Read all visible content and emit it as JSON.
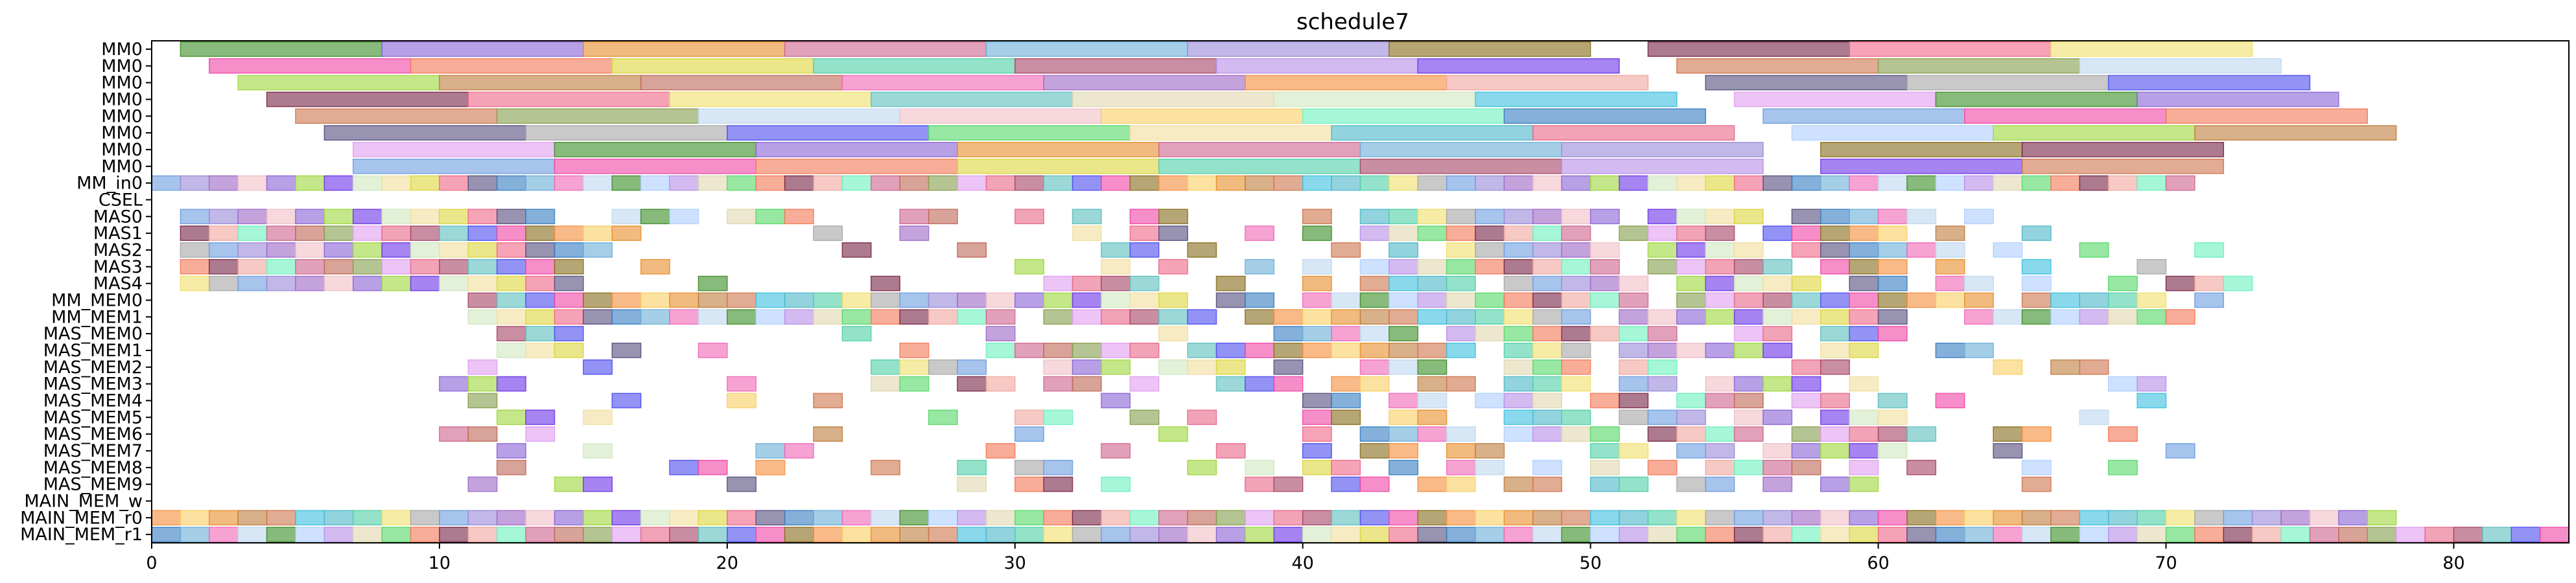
{
  "chart_data": {
    "type": "gantt",
    "title": "schedule7",
    "xlim": [
      0,
      84
    ],
    "x_ticks": [
      0,
      10,
      20,
      30,
      40,
      50,
      60,
      70,
      80
    ],
    "grid": false,
    "rows": [
      "MM0",
      "MM0",
      "MM0",
      "MM0",
      "MM0",
      "MM0",
      "MM0",
      "MM0",
      "MM_in0",
      "CSEL",
      "MAS0",
      "MAS1",
      "MAS2",
      "MAS3",
      "MAS4",
      "MM_MEM0",
      "MM_MEM1",
      "MAS_MEM0",
      "MAS_MEM1",
      "MAS_MEM2",
      "MAS_MEM3",
      "MAS_MEM4",
      "MAS_MEM5",
      "MAS_MEM6",
      "MAS_MEM7",
      "MAS_MEM8",
      "MAS_MEM9",
      "MAIN_MEM_w",
      "MAIN_MEM_r0",
      "MAIN_MEM_r1"
    ],
    "palette": [
      "#59d96b",
      "#3f8f2a",
      "#3a80c2",
      "#f2dfa0",
      "#8c66d6",
      "#6f9fe0",
      "#4fb8c9",
      "#e89030",
      "#f04aa8",
      "#e86a8a",
      "#d06890",
      "#f47a5a",
      "#b0d0ff",
      "#6eb0d8",
      "#ddd640",
      "#a0d840",
      "#9b8cd8",
      "#52d0a8",
      "#c08040",
      "#8a7020",
      "#a84868",
      "#c06a5a",
      "#7a2a4a",
      "#b890e8",
      "#f06ab8",
      "#f06a8a",
      "#7038e8",
      "#a06ac8",
      "#f0e070",
      "#d07850",
      "#f59040",
      "#60c0c0",
      "#88a050",
      "#f0a8a0",
      "#e0d8b0",
      "#c0d8f0",
      "#585080",
      "#d0e8c0",
      "#f0c0c8",
      "#a8a8a8",
      "#40c0e0",
      "#f8d068",
      "#5050f0",
      "#e0a0f0",
      "#70f0c0"
    ],
    "long_rows": [
      {
        "row": 0,
        "tasks": [
          [
            1,
            8
          ],
          [
            8,
            15
          ],
          [
            15,
            22
          ],
          [
            22,
            29
          ],
          [
            29,
            36
          ],
          [
            36,
            43
          ],
          [
            43,
            50
          ],
          [
            52,
            59
          ],
          [
            59,
            66
          ],
          [
            66,
            73
          ]
        ]
      },
      {
        "row": 1,
        "tasks": [
          [
            2,
            9
          ],
          [
            9,
            16
          ],
          [
            16,
            23
          ],
          [
            23,
            30
          ],
          [
            30,
            37
          ],
          [
            37,
            44
          ],
          [
            44,
            51
          ],
          [
            53,
            60
          ],
          [
            60,
            67
          ],
          [
            67,
            74
          ]
        ]
      },
      {
        "row": 2,
        "tasks": [
          [
            3,
            10
          ],
          [
            10,
            17
          ],
          [
            17,
            24
          ],
          [
            24,
            31
          ],
          [
            31,
            38
          ],
          [
            38,
            45
          ],
          [
            45,
            52
          ],
          [
            54,
            61
          ],
          [
            61,
            68
          ],
          [
            68,
            75
          ]
        ]
      },
      {
        "row": 3,
        "tasks": [
          [
            4,
            11
          ],
          [
            11,
            18
          ],
          [
            18,
            25
          ],
          [
            25,
            32
          ],
          [
            32,
            39
          ],
          [
            39,
            46
          ],
          [
            46,
            53
          ],
          [
            55,
            62
          ],
          [
            62,
            69
          ],
          [
            69,
            76
          ]
        ]
      },
      {
        "row": 4,
        "tasks": [
          [
            5,
            12
          ],
          [
            12,
            19
          ],
          [
            19,
            26
          ],
          [
            26,
            33
          ],
          [
            33,
            40
          ],
          [
            40,
            47
          ],
          [
            47,
            54
          ],
          [
            56,
            63
          ],
          [
            63,
            70
          ],
          [
            70,
            77
          ]
        ]
      },
      {
        "row": 5,
        "tasks": [
          [
            6,
            13
          ],
          [
            13,
            20
          ],
          [
            20,
            27
          ],
          [
            27,
            34
          ],
          [
            34,
            41
          ],
          [
            41,
            48
          ],
          [
            48,
            55
          ],
          [
            57,
            64
          ],
          [
            64,
            71
          ],
          [
            71,
            78
          ]
        ]
      },
      {
        "row": 6,
        "tasks": [
          [
            7,
            14
          ],
          [
            14,
            21
          ],
          [
            21,
            28
          ],
          [
            28,
            35
          ],
          [
            35,
            42
          ],
          [
            42,
            49
          ],
          [
            49,
            56
          ],
          [
            58,
            65
          ],
          [
            65,
            72
          ]
        ]
      },
      {
        "row": 7,
        "tasks": [
          [
            7,
            14
          ],
          [
            14,
            21
          ],
          [
            21,
            28
          ],
          [
            28,
            35
          ],
          [
            35,
            42
          ],
          [
            42,
            49
          ],
          [
            49,
            56
          ],
          [
            58,
            65
          ],
          [
            65,
            72
          ]
        ]
      }
    ],
    "unit_rows": [
      {
        "row": 8,
        "spans": [
          [
            0,
            71
          ]
        ]
      },
      {
        "row": 9,
        "spans": []
      },
      {
        "row": 10,
        "spans": [
          [
            1,
            14
          ],
          [
            16,
            19
          ],
          [
            20,
            23
          ],
          [
            26,
            28
          ],
          [
            30,
            31
          ],
          [
            32,
            33
          ],
          [
            34,
            36
          ],
          [
            40,
            41
          ],
          [
            42,
            51
          ],
          [
            52,
            56
          ],
          [
            57,
            62
          ],
          [
            63,
            64
          ]
        ]
      },
      {
        "row": 11,
        "spans": [
          [
            1,
            17
          ],
          [
            23,
            24
          ],
          [
            26,
            27
          ],
          [
            32,
            33
          ],
          [
            34,
            36
          ],
          [
            38,
            39
          ],
          [
            40,
            41
          ],
          [
            42,
            50
          ],
          [
            51,
            55
          ],
          [
            56,
            61
          ],
          [
            62,
            63
          ],
          [
            65,
            66
          ]
        ]
      },
      {
        "row": 12,
        "spans": [
          [
            1,
            16
          ],
          [
            24,
            25
          ],
          [
            28,
            29
          ],
          [
            33,
            35
          ],
          [
            36,
            37
          ],
          [
            41,
            42
          ],
          [
            43,
            44
          ],
          [
            45,
            51
          ],
          [
            52,
            56
          ],
          [
            57,
            63
          ],
          [
            64,
            65
          ],
          [
            67,
            68
          ],
          [
            71,
            72
          ]
        ]
      },
      {
        "row": 13,
        "spans": [
          [
            1,
            15
          ],
          [
            17,
            18
          ],
          [
            30,
            31
          ],
          [
            33,
            34
          ],
          [
            35,
            36
          ],
          [
            38,
            39
          ],
          [
            40,
            41
          ],
          [
            42,
            51
          ],
          [
            52,
            57
          ],
          [
            58,
            61
          ],
          [
            62,
            63
          ],
          [
            65,
            66
          ],
          [
            69,
            70
          ]
        ]
      },
      {
        "row": 14,
        "spans": [
          [
            1,
            15
          ],
          [
            19,
            20
          ],
          [
            25,
            26
          ],
          [
            31,
            35
          ],
          [
            37,
            38
          ],
          [
            40,
            41
          ],
          [
            42,
            46
          ],
          [
            47,
            52
          ],
          [
            53,
            58
          ],
          [
            59,
            61
          ],
          [
            62,
            64
          ],
          [
            65,
            66
          ],
          [
            68,
            69
          ],
          [
            70,
            72
          ],
          [
            72,
            73
          ]
        ]
      },
      {
        "row": 15,
        "spans": [
          [
            11,
            36
          ],
          [
            37,
            39
          ],
          [
            40,
            52
          ],
          [
            53,
            64
          ],
          [
            65,
            70
          ],
          [
            71,
            72
          ]
        ]
      },
      {
        "row": 16,
        "spans": [
          [
            11,
            30
          ],
          [
            31,
            37
          ],
          [
            38,
            50
          ],
          [
            51,
            61
          ],
          [
            63,
            71
          ]
        ]
      },
      {
        "row": 17,
        "spans": [
          [
            12,
            15
          ],
          [
            24,
            25
          ],
          [
            29,
            30
          ],
          [
            35,
            36
          ],
          [
            39,
            44
          ],
          [
            45,
            53
          ],
          [
            55,
            57
          ],
          [
            58,
            61
          ]
        ]
      },
      {
        "row": 18,
        "spans": [
          [
            12,
            15
          ],
          [
            16,
            17
          ],
          [
            19,
            20
          ],
          [
            26,
            27
          ],
          [
            29,
            35
          ],
          [
            36,
            46
          ],
          [
            47,
            50
          ],
          [
            51,
            57
          ],
          [
            58,
            60
          ],
          [
            62,
            64
          ]
        ]
      },
      {
        "row": 19,
        "spans": [
          [
            11,
            12
          ],
          [
            15,
            16
          ],
          [
            25,
            29
          ],
          [
            31,
            34
          ],
          [
            35,
            38
          ],
          [
            39,
            40
          ],
          [
            42,
            45
          ],
          [
            47,
            50
          ],
          [
            51,
            53
          ],
          [
            57,
            59
          ],
          [
            64,
            65
          ],
          [
            66,
            68
          ]
        ]
      },
      {
        "row": 20,
        "spans": [
          [
            10,
            13
          ],
          [
            20,
            21
          ],
          [
            25,
            27
          ],
          [
            28,
            30
          ],
          [
            31,
            33
          ],
          [
            34,
            35
          ],
          [
            37,
            40
          ],
          [
            41,
            43
          ],
          [
            44,
            46
          ],
          [
            47,
            50
          ],
          [
            51,
            53
          ],
          [
            54,
            58
          ],
          [
            59,
            60
          ],
          [
            68,
            70
          ]
        ]
      },
      {
        "row": 21,
        "spans": [
          [
            11,
            12
          ],
          [
            16,
            17
          ],
          [
            20,
            21
          ],
          [
            23,
            24
          ],
          [
            33,
            34
          ],
          [
            40,
            42
          ],
          [
            43,
            45
          ],
          [
            46,
            49
          ],
          [
            50,
            52
          ],
          [
            53,
            56
          ],
          [
            57,
            59
          ],
          [
            60,
            61
          ],
          [
            62,
            63
          ],
          [
            69,
            70
          ]
        ]
      },
      {
        "row": 22,
        "spans": [
          [
            12,
            14
          ],
          [
            15,
            16
          ],
          [
            27,
            28
          ],
          [
            30,
            32
          ],
          [
            34,
            35
          ],
          [
            36,
            37
          ],
          [
            40,
            42
          ],
          [
            43,
            45
          ],
          [
            47,
            50
          ],
          [
            51,
            54
          ],
          [
            55,
            57
          ],
          [
            58,
            61
          ],
          [
            67,
            68
          ]
        ]
      },
      {
        "row": 23,
        "spans": [
          [
            10,
            12
          ],
          [
            13,
            14
          ],
          [
            23,
            24
          ],
          [
            30,
            31
          ],
          [
            35,
            36
          ],
          [
            40,
            41
          ],
          [
            42,
            46
          ],
          [
            47,
            51
          ],
          [
            52,
            56
          ],
          [
            57,
            62
          ],
          [
            64,
            66
          ],
          [
            68,
            69
          ]
        ]
      },
      {
        "row": 24,
        "spans": [
          [
            12,
            13
          ],
          [
            15,
            16
          ],
          [
            21,
            23
          ],
          [
            29,
            30
          ],
          [
            33,
            34
          ],
          [
            37,
            38
          ],
          [
            40,
            41
          ],
          [
            42,
            44
          ],
          [
            45,
            47
          ],
          [
            50,
            52
          ],
          [
            53,
            55
          ],
          [
            56,
            61
          ],
          [
            64,
            65
          ],
          [
            70,
            71
          ]
        ]
      },
      {
        "row": 25,
        "spans": [
          [
            12,
            13
          ],
          [
            18,
            20
          ],
          [
            21,
            22
          ],
          [
            25,
            26
          ],
          [
            28,
            29
          ],
          [
            30,
            32
          ],
          [
            36,
            37
          ],
          [
            38,
            39
          ],
          [
            40,
            42
          ],
          [
            43,
            44
          ],
          [
            45,
            47
          ],
          [
            48,
            49
          ],
          [
            50,
            51
          ],
          [
            52,
            53
          ],
          [
            54,
            58
          ],
          [
            59,
            60
          ],
          [
            61,
            62
          ],
          [
            65,
            66
          ],
          [
            68,
            69
          ]
        ]
      },
      {
        "row": 26,
        "spans": [
          [
            11,
            12
          ],
          [
            14,
            16
          ],
          [
            20,
            21
          ],
          [
            28,
            29
          ],
          [
            30,
            32
          ],
          [
            33,
            34
          ],
          [
            38,
            40
          ],
          [
            41,
            43
          ],
          [
            44,
            46
          ],
          [
            47,
            49
          ],
          [
            50,
            52
          ],
          [
            53,
            55
          ],
          [
            56,
            57
          ],
          [
            58,
            60
          ],
          [
            65,
            66
          ]
        ]
      },
      {
        "row": 27,
        "spans": []
      },
      {
        "row": 28,
        "spans": [
          [
            0,
            78
          ]
        ]
      },
      {
        "row": 29,
        "spans": [
          [
            0,
            84
          ]
        ]
      }
    ]
  }
}
